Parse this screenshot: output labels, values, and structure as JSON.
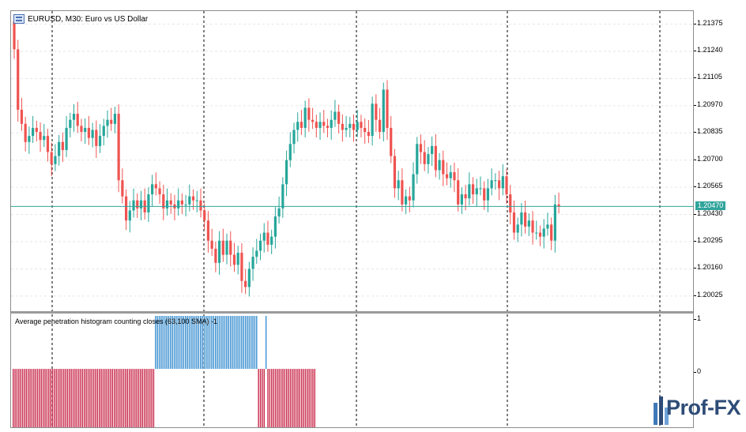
{
  "window": {
    "title": "EURUSD, M30:  Euro vs US Dollar",
    "indicator_title": "Average penetration histogram counting closes (63,100 SMA) -1"
  },
  "price_scale": {
    "ticks": [
      "1.21375",
      "1.21240",
      "1.21105",
      "1.20970",
      "1.20835",
      "1.20700",
      "1.20565",
      "1.20430",
      "1.20295",
      "1.20160",
      "1.20025"
    ],
    "current_price": "1.20470"
  },
  "indicator_scale": {
    "ticks": [
      "1",
      "0"
    ]
  },
  "colors": {
    "bull": "#26a69a",
    "bear": "#ef5350",
    "hist_pos": "#3a8fd0",
    "hist_neg": "#c8284a",
    "price_line": "#2fa49c"
  },
  "logo": {
    "text": "Prof-FX"
  },
  "chart_data": {
    "type": "candlestick",
    "title": "EURUSD, M30:  Euro vs US Dollar",
    "ylim": [
      1.1995,
      1.2144
    ],
    "current_price": 1.2047,
    "series_close": [
      1.2125,
      1.2095,
      1.2088,
      1.2079,
      1.2082,
      1.2086,
      1.2084,
      1.208,
      1.2082,
      1.2074,
      1.2068,
      1.2072,
      1.2079,
      1.2075,
      1.2086,
      1.209,
      1.2093,
      1.2087,
      1.2084,
      1.2086,
      1.2081,
      1.2085,
      1.2077,
      1.2082,
      1.2087,
      1.209,
      1.2088,
      1.2093,
      1.206,
      1.2052,
      1.204,
      1.2045,
      1.205,
      1.2046,
      1.205,
      1.2044,
      1.2053,
      1.2058,
      1.2056,
      1.2053,
      1.2046,
      1.205,
      1.2048,
      1.2046,
      1.205,
      1.2048,
      1.2048,
      1.2052,
      1.205,
      1.205,
      1.2045,
      1.204,
      1.203,
      1.2026,
      1.2019,
      1.203,
      1.2023,
      1.203,
      1.2023,
      1.2018,
      1.2024,
      1.201,
      1.2007,
      1.2016,
      1.2022,
      1.2025,
      1.203,
      1.2034,
      1.2028,
      1.2032,
      1.2042,
      1.2046,
      1.2058,
      1.207,
      1.2078,
      1.2085,
      1.2089,
      1.2086,
      1.2096,
      1.209,
      1.2089,
      1.2086,
      1.2089,
      1.2087,
      1.2086,
      1.209,
      1.2094,
      1.2088,
      1.2085,
      1.2086,
      1.2088,
      1.2085,
      1.2089,
      1.2086,
      1.2084,
      1.2082,
      1.2098,
      1.209,
      1.2084,
      1.2105,
      1.2086,
      1.2072,
      1.2056,
      1.206,
      1.2048,
      1.2052,
      1.205,
      1.2063,
      1.2078,
      1.2074,
      1.2068,
      1.2073,
      1.2077,
      1.2065,
      1.207,
      1.2063,
      1.2061,
      1.2064,
      1.206,
      1.2048,
      1.2053,
      1.2051,
      1.2058,
      1.2053,
      1.2056,
      1.2056,
      1.205,
      1.2056,
      1.206,
      1.206,
      1.2056,
      1.2062,
      1.2053,
      1.2044,
      1.2034,
      1.2038,
      1.2044,
      1.2037,
      1.204,
      1.2034,
      1.2034,
      1.2032,
      1.2036,
      1.2038,
      1.203,
      1.2048,
      1.2047
    ],
    "histogram": {
      "ylim": [
        -1,
        1
      ],
      "values": [
        -1,
        -1,
        -1,
        -1,
        -1,
        -1,
        -1,
        -1,
        -1,
        -1,
        -1,
        -1,
        -1,
        -1,
        -1,
        -1,
        -1,
        -1,
        -1,
        -1,
        -1,
        -1,
        -1,
        -1,
        -1,
        -1,
        -1,
        -1,
        -1,
        -1,
        -1,
        -1,
        -1,
        -1,
        -1,
        -1,
        -1,
        -1,
        -1,
        -1,
        -1,
        -1,
        -1,
        -1,
        -1,
        -1,
        -1,
        -1,
        -1,
        -1,
        -1,
        -1,
        -1,
        -1,
        -1,
        -1,
        -1,
        -1,
        -1,
        -1,
        -1,
        -1,
        -1,
        -1,
        -1,
        -1,
        -1,
        -1,
        -1,
        -1,
        -1,
        -1,
        -1,
        -1,
        -1,
        -1,
        1,
        1,
        1,
        1,
        1,
        1,
        1,
        1,
        1,
        1,
        1,
        1,
        1,
        1,
        1,
        1,
        1,
        1,
        1,
        1,
        1,
        1,
        1,
        1,
        1,
        1,
        1,
        1,
        1,
        1,
        1,
        1,
        1,
        1,
        1,
        1,
        1,
        1,
        1,
        1,
        1,
        1,
        1,
        1,
        1,
        1,
        1,
        1,
        1,
        1,
        1,
        1,
        1,
        1,
        1,
        -1,
        -1,
        -1,
        -1,
        1,
        -1,
        -1,
        -1,
        -1,
        -1,
        -1,
        -1,
        -1,
        -1,
        -1,
        -1,
        -1,
        -1,
        -1,
        -1,
        -1,
        -1,
        -1,
        -1,
        -1,
        -1,
        -1,
        -1,
        -1,
        -1,
        -1
      ]
    }
  }
}
